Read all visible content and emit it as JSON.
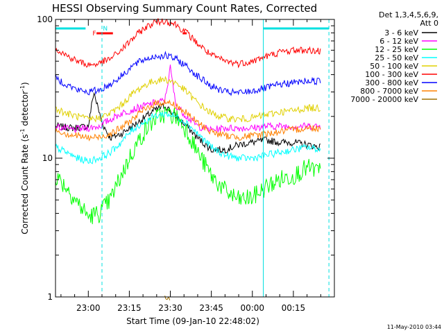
{
  "chart_data": {
    "type": "line",
    "title": "HESSI Observing Summary Count Rates, Corrected",
    "xlabel": "Start Time (09-Jan-10 22:48:02)",
    "ylabel": "Corrected Count Rate (s⁻¹ detector⁻¹)",
    "ylabel_main": "Corrected Count Rate (s",
    "ylabel_sup1": "-1",
    "ylabel_mid": " detector",
    "ylabel_sup2": "-1",
    "ylabel_end": ")",
    "yscale": "log",
    "ylim": [
      1,
      100
    ],
    "y_ticks": [
      "1",
      "10",
      "100"
    ],
    "xlim_minutes": [
      -12,
      90
    ],
    "x_tick_minutes": [
      0,
      15,
      30,
      45,
      60,
      75
    ],
    "x_ticks": [
      "23:00",
      "23:15",
      "23:30",
      "23:45",
      "00:00",
      "00:15"
    ],
    "grid": false,
    "legend_title": [
      "Det 1,3,4,5,6,9,",
      "Att 0"
    ],
    "legend_placement": "right",
    "footer_date": "11-May-2010 03:44",
    "flag_labels": {
      "F": "F",
      "N": "N"
    },
    "flag_color": "#00e0e0",
    "flag_f_color": "#ff0000",
    "series": [
      {
        "name": "3 - 6 keV",
        "color": "#000000",
        "x": [
          -12,
          -6,
          0,
          2,
          5,
          8,
          12,
          18,
          24,
          28,
          30,
          32,
          36,
          40,
          45,
          50,
          55,
          60,
          65,
          70,
          75,
          80,
          85
        ],
        "y": [
          17,
          16.5,
          17,
          30,
          18,
          14,
          15,
          18,
          22,
          24,
          22,
          20,
          17,
          14,
          11.5,
          11.5,
          12.5,
          13,
          13.5,
          13,
          13,
          12.5,
          12
        ]
      },
      {
        "name": "6 - 12 keV",
        "color": "#ff00ff",
        "x": [
          -12,
          -6,
          0,
          4,
          8,
          12,
          18,
          24,
          28,
          30,
          32,
          36,
          40,
          45,
          50,
          55,
          60,
          65,
          70,
          75,
          80,
          85
        ],
        "y": [
          17,
          16,
          16.5,
          17,
          19,
          21,
          23,
          25,
          26,
          45,
          24,
          20,
          17,
          16,
          16.5,
          16.5,
          16.5,
          17,
          17,
          17,
          17,
          17
        ]
      },
      {
        "name": "12 - 25 keV",
        "color": "#00ff00",
        "x": [
          -12,
          -8,
          -4,
          0,
          4,
          8,
          12,
          16,
          20,
          24,
          28,
          32,
          36,
          40,
          45,
          50,
          55,
          60,
          65,
          70,
          75,
          80,
          85
        ],
        "y": [
          7.5,
          6.2,
          4.8,
          3.8,
          4.0,
          5.0,
          7.5,
          11,
          15,
          19,
          21,
          20,
          16,
          11,
          7.5,
          5.8,
          5.0,
          5.2,
          6.2,
          7.0,
          7.5,
          8.5,
          8.0
        ]
      },
      {
        "name": "25 - 50 keV",
        "color": "#00ffff",
        "x": [
          -12,
          -8,
          -4,
          0,
          4,
          8,
          12,
          16,
          20,
          24,
          28,
          32,
          36,
          40,
          45,
          50,
          55,
          60,
          65,
          70,
          75,
          80,
          85
        ],
        "y": [
          12,
          11,
          10,
          9.5,
          10,
          11,
          13,
          16,
          18,
          20,
          21,
          20,
          18,
          15,
          12,
          10.5,
          10,
          10,
          10.5,
          11,
          11.5,
          12,
          11.5
        ]
      },
      {
        "name": "50 - 100 keV",
        "color": "#e0d000",
        "x": [
          -12,
          -8,
          -4,
          0,
          4,
          8,
          12,
          16,
          20,
          24,
          28,
          32,
          36,
          40,
          45,
          50,
          55,
          60,
          65,
          70,
          75,
          80,
          85
        ],
        "y": [
          23,
          21,
          20,
          19,
          19.5,
          21,
          24,
          29,
          33,
          36,
          37,
          35,
          30,
          25,
          21,
          19.5,
          19,
          19.5,
          20.5,
          21.5,
          22,
          23,
          23
        ]
      },
      {
        "name": "100 - 300 keV",
        "color": "#ff0000",
        "x": [
          -12,
          -8,
          -4,
          0,
          4,
          8,
          12,
          16,
          20,
          24,
          28,
          32,
          36,
          40,
          45,
          50,
          55,
          60,
          65,
          70,
          75,
          80,
          85
        ],
        "y": [
          62,
          55,
          50,
          47,
          48,
          52,
          60,
          72,
          85,
          95,
          98,
          92,
          80,
          67,
          55,
          50,
          48,
          50,
          54,
          58,
          60,
          60,
          59
        ]
      },
      {
        "name": "300 - 800 keV",
        "color": "#0000ff",
        "x": [
          -12,
          -8,
          -4,
          0,
          4,
          8,
          12,
          16,
          20,
          24,
          28,
          32,
          36,
          40,
          45,
          50,
          55,
          60,
          65,
          70,
          75,
          80,
          85
        ],
        "y": [
          38,
          34,
          31,
          30,
          31,
          34,
          39,
          46,
          51,
          54,
          55,
          52,
          46,
          39,
          33,
          30,
          29.5,
          30.5,
          32,
          34,
          35,
          36,
          36
        ]
      },
      {
        "name": "800 - 7000 keV",
        "color": "#ff8000",
        "x": [
          -12,
          -8,
          -4,
          0,
          4,
          8,
          12,
          16,
          20,
          24,
          28,
          32,
          36,
          40,
          45,
          50,
          55,
          60,
          65,
          70,
          75,
          80,
          85
        ],
        "y": [
          16,
          15,
          14.5,
          14,
          14.2,
          15,
          16.5,
          19,
          22,
          24.5,
          25.5,
          24,
          21,
          18,
          15.5,
          14.5,
          14.2,
          14.5,
          15,
          15.5,
          16,
          16.5,
          16.5
        ]
      },
      {
        "name": "7000 - 20000 keV",
        "color": "#a07000",
        "x": [
          28,
          30
        ],
        "y": [
          1.0,
          1.0
        ]
      }
    ]
  }
}
